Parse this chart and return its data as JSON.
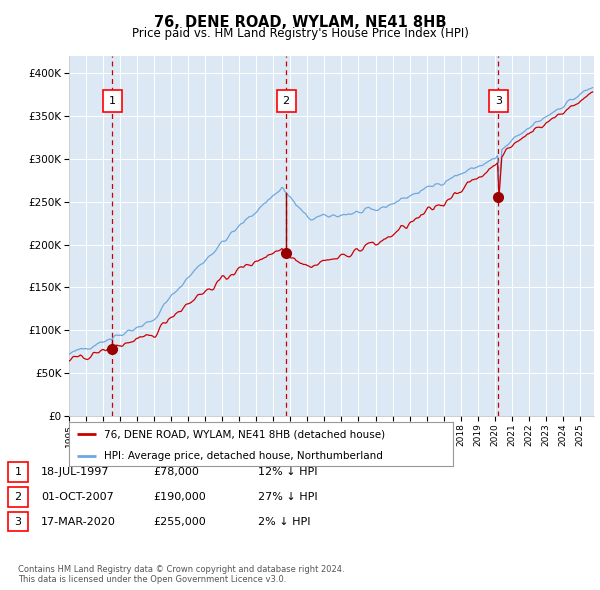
{
  "title": "76, DENE ROAD, WYLAM, NE41 8HB",
  "subtitle": "Price paid vs. HM Land Registry's House Price Index (HPI)",
  "background_color": "#ffffff",
  "plot_bg_color": "#dce9f5",
  "ylim": [
    0,
    420000
  ],
  "yticks": [
    0,
    50000,
    100000,
    150000,
    200000,
    250000,
    300000,
    350000,
    400000
  ],
  "ytick_labels": [
    "£0",
    "£50K",
    "£100K",
    "£150K",
    "£200K",
    "£250K",
    "£300K",
    "£350K",
    "£400K"
  ],
  "xlim_start": 1995.0,
  "xlim_end": 2025.83,
  "sale_dates": [
    1997.54,
    2007.75,
    2020.21
  ],
  "sale_prices": [
    78000,
    190000,
    255000
  ],
  "sale_labels": [
    "1",
    "2",
    "3"
  ],
  "hpi_color": "#6fa8dc",
  "price_color": "#cc0000",
  "sale_marker_color": "#990000",
  "dashed_line_color": "#cc0000",
  "legend_label_price": "76, DENE ROAD, WYLAM, NE41 8HB (detached house)",
  "legend_label_hpi": "HPI: Average price, detached house, Northumberland",
  "table_rows": [
    {
      "num": "1",
      "date": "18-JUL-1997",
      "price": "£78,000",
      "hpi": "12% ↓ HPI"
    },
    {
      "num": "2",
      "date": "01-OCT-2007",
      "price": "£190,000",
      "hpi": "27% ↓ HPI"
    },
    {
      "num": "3",
      "date": "17-MAR-2020",
      "price": "£255,000",
      "hpi": "2% ↓ HPI"
    }
  ],
  "footnote": "Contains HM Land Registry data © Crown copyright and database right 2024.\nThis data is licensed under the Open Government Licence v3.0.",
  "grid_color": "#ffffff",
  "seed": 42
}
